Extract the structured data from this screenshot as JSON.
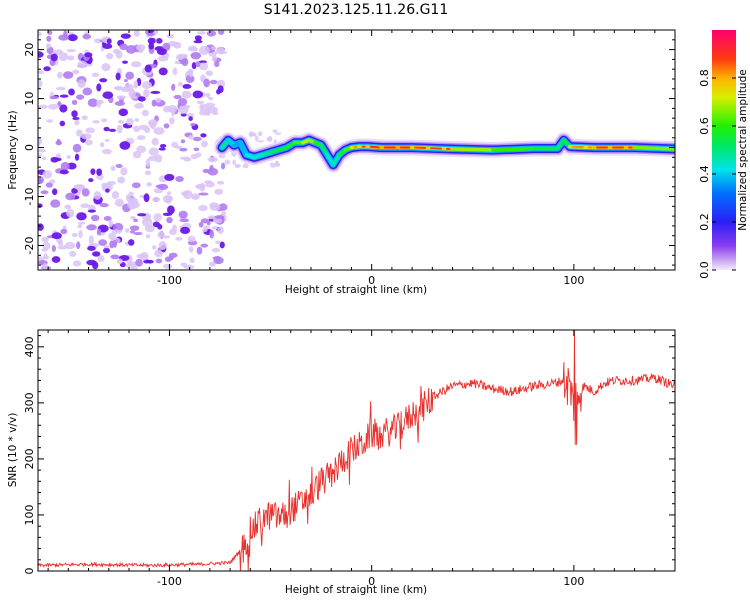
{
  "title": "S141.2023.125.11.26.G11",
  "chart_data": [
    {
      "type": "heatmap",
      "xlabel": "Height of straight line (km)",
      "ylabel": "Frequency (Hz)",
      "xlim": [
        -165,
        150
      ],
      "ylim": [
        -25,
        24
      ],
      "x_ticks": [
        -100,
        0,
        100
      ],
      "y_ticks": [
        -20,
        -10,
        0,
        10,
        20
      ],
      "colorbar": {
        "label": "Normalized spectral amplitude",
        "range": [
          0.0,
          1.0
        ],
        "ticks": [
          0.0,
          0.2,
          0.4,
          0.6,
          0.8
        ],
        "colormap": "rainbow (white-violet-blue-cyan-green-yellow-orange-red-magenta)"
      },
      "noise_region_x": [
        -165,
        -73
      ],
      "signal_trace": {
        "x": [
          -74,
          -71,
          -68,
          -65,
          -62,
          -58,
          -54,
          -50,
          -46,
          -42,
          -38,
          -34,
          -31,
          -28,
          -25,
          -22,
          -19,
          -16,
          -13,
          -10,
          -6,
          -2,
          5,
          20,
          40,
          60,
          80,
          92,
          95,
          98,
          110,
          130,
          150
        ],
        "freq_hz": [
          0.0,
          1.5,
          0.5,
          1.0,
          -1.5,
          -2.0,
          -1.5,
          -1.0,
          -0.5,
          0.0,
          1.0,
          1.0,
          1.5,
          1.0,
          0.5,
          -1.5,
          -3.5,
          -1.5,
          -0.5,
          0.0,
          0.2,
          0.2,
          0.0,
          0.0,
          -0.3,
          -0.5,
          -0.2,
          -0.2,
          1.5,
          0.2,
          0.0,
          0.0,
          -0.3
        ],
        "amplitude": [
          0.55,
          0.45,
          0.35,
          0.35,
          0.4,
          0.45,
          0.45,
          0.55,
          0.6,
          0.6,
          0.65,
          0.75,
          0.85,
          0.7,
          0.6,
          0.5,
          0.4,
          0.55,
          0.65,
          0.75,
          0.9,
          0.85,
          0.95,
          0.9,
          0.85,
          0.7,
          0.65,
          0.6,
          0.5,
          0.7,
          0.95,
          0.85,
          0.65
        ]
      }
    },
    {
      "type": "line",
      "xlabel": "Height of straight line (km)",
      "ylabel": "SNR (10 * v/v)",
      "xlim": [
        -165,
        150
      ],
      "ylim": [
        0,
        430
      ],
      "x_ticks": [
        -100,
        0,
        100
      ],
      "y_ticks": [
        0,
        100,
        200,
        300,
        400
      ],
      "series": [
        {
          "color": "#e8302c",
          "x": [
            -165,
            -140,
            -110,
            -85,
            -70,
            -63,
            -60,
            -55,
            -50,
            -45,
            -40,
            -35,
            -30,
            -25,
            -20,
            -15,
            -10,
            -5,
            0,
            5,
            10,
            15,
            20,
            25,
            30,
            40,
            50,
            60,
            70,
            80,
            90,
            95,
            98,
            100,
            102,
            105,
            110,
            115,
            120,
            130,
            140,
            150
          ],
          "y": [
            10,
            12,
            10,
            12,
            15,
            45,
            70,
            90,
            100,
            95,
            110,
            120,
            135,
            160,
            170,
            195,
            215,
            225,
            245,
            245,
            250,
            260,
            280,
            290,
            310,
            330,
            335,
            325,
            320,
            330,
            335,
            340,
            330,
            300,
            320,
            330,
            320,
            335,
            340,
            340,
            345,
            330
          ]
        }
      ]
    }
  ]
}
